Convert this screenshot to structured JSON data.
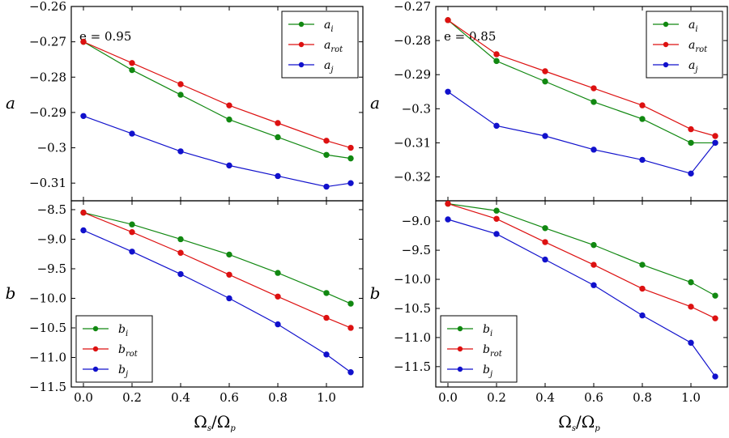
{
  "figure": {
    "xlabel": "Ω",
    "xlabel_sub1": "s",
    "xlabel_slash": "/Ω",
    "xlabel_sub2": "p"
  },
  "chart_data": [
    {
      "type": "line",
      "id": "left-top",
      "annotation": "e = 0.95",
      "ylabel": "a",
      "x": [
        0.0,
        0.2,
        0.4,
        0.6,
        0.8,
        1.0,
        1.1
      ],
      "xlim": [
        -0.05,
        1.15
      ],
      "ylim": [
        -0.315,
        -0.26
      ],
      "yticks": [
        -0.31,
        -0.3,
        -0.29,
        -0.28,
        -0.27,
        -0.26
      ],
      "ytick_labels": [
        "−0.31",
        "−0.3",
        "−0.29",
        "−0.28",
        "−0.27",
        "−0.26"
      ],
      "legend_position": "top-right",
      "series": [
        {
          "name": "a",
          "sub": "i",
          "color": "#118811",
          "values": [
            -0.27,
            -0.278,
            -0.285,
            -0.292,
            -0.297,
            -0.302,
            -0.303
          ]
        },
        {
          "name": "a",
          "sub": "rot",
          "color": "#dd1111",
          "values": [
            -0.27,
            -0.276,
            -0.282,
            -0.288,
            -0.293,
            -0.298,
            -0.3
          ]
        },
        {
          "name": "a",
          "sub": "j",
          "color": "#1111cc",
          "values": [
            -0.291,
            -0.296,
            -0.301,
            -0.305,
            -0.308,
            -0.311,
            -0.31
          ]
        }
      ]
    },
    {
      "type": "line",
      "id": "left-bottom",
      "ylabel": "b",
      "x": [
        0.0,
        0.2,
        0.4,
        0.6,
        0.8,
        1.0,
        1.1
      ],
      "xlim": [
        -0.05,
        1.15
      ],
      "ylim": [
        -11.5,
        -8.35
      ],
      "yticks": [
        -11.5,
        -11.0,
        -10.5,
        -10.0,
        -9.5,
        -9.0,
        -8.5
      ],
      "ytick_labels": [
        "−11.5",
        "−11.0",
        "−10.5",
        "−10.0",
        "−9.5",
        "−9.0",
        "−8.5"
      ],
      "xticks": [
        0.0,
        0.2,
        0.4,
        0.6,
        0.8,
        1.0
      ],
      "xtick_labels": [
        "0.0",
        "0.2",
        "0.4",
        "0.6",
        "0.8",
        "1.0"
      ],
      "legend_position": "bottom-left",
      "series": [
        {
          "name": "b",
          "sub": "i",
          "color": "#118811",
          "values": [
            -8.55,
            -8.75,
            -9.0,
            -9.26,
            -9.57,
            -9.91,
            -10.09
          ]
        },
        {
          "name": "b",
          "sub": "rot",
          "color": "#dd1111",
          "values": [
            -8.55,
            -8.88,
            -9.23,
            -9.6,
            -9.97,
            -10.33,
            -10.5
          ]
        },
        {
          "name": "b",
          "sub": "j",
          "color": "#1111cc",
          "values": [
            -8.85,
            -9.21,
            -9.59,
            -10.0,
            -10.44,
            -10.95,
            -11.25
          ]
        }
      ]
    },
    {
      "type": "line",
      "id": "right-top",
      "annotation": "e = 0.85",
      "ylabel": "a",
      "x": [
        0.0,
        0.2,
        0.4,
        0.6,
        0.8,
        1.0,
        1.1
      ],
      "xlim": [
        -0.05,
        1.15
      ],
      "ylim": [
        -0.327,
        -0.27
      ],
      "yticks": [
        -0.32,
        -0.31,
        -0.3,
        -0.29,
        -0.28,
        -0.27
      ],
      "ytick_labels": [
        "−0.32",
        "−0.31",
        "−0.3",
        "−0.29",
        "−0.28",
        "−0.27"
      ],
      "legend_position": "top-right",
      "series": [
        {
          "name": "a",
          "sub": "i",
          "color": "#118811",
          "values": [
            -0.274,
            -0.286,
            -0.292,
            -0.298,
            -0.303,
            -0.31,
            -0.31
          ]
        },
        {
          "name": "a",
          "sub": "rot",
          "color": "#dd1111",
          "values": [
            -0.274,
            -0.284,
            -0.289,
            -0.294,
            -0.299,
            -0.306,
            -0.308
          ]
        },
        {
          "name": "a",
          "sub": "j",
          "color": "#1111cc",
          "values": [
            -0.295,
            -0.305,
            -0.308,
            -0.312,
            -0.315,
            -0.319,
            -0.31
          ]
        }
      ]
    },
    {
      "type": "line",
      "id": "right-bottom",
      "ylabel": "b",
      "x": [
        0.0,
        0.2,
        0.4,
        0.6,
        0.8,
        1.0,
        1.1
      ],
      "xlim": [
        -0.05,
        1.15
      ],
      "ylim": [
        -11.85,
        -8.65
      ],
      "yticks": [
        -11.5,
        -11.0,
        -10.5,
        -10.0,
        -9.5,
        -9.0
      ],
      "ytick_labels": [
        "−11.5",
        "−11.0",
        "−10.5",
        "−10.0",
        "−9.5",
        "−9.0"
      ],
      "xticks": [
        0.0,
        0.2,
        0.4,
        0.6,
        0.8,
        1.0
      ],
      "xtick_labels": [
        "0.0",
        "0.2",
        "0.4",
        "0.6",
        "0.8",
        "1.0"
      ],
      "legend_position": "bottom-left",
      "series": [
        {
          "name": "b",
          "sub": "i",
          "color": "#118811",
          "values": [
            -8.7,
            -8.82,
            -9.12,
            -9.41,
            -9.75,
            -10.05,
            -10.28
          ]
        },
        {
          "name": "b",
          "sub": "rot",
          "color": "#dd1111",
          "values": [
            -8.7,
            -8.96,
            -9.36,
            -9.75,
            -10.16,
            -10.47,
            -10.67
          ]
        },
        {
          "name": "b",
          "sub": "j",
          "color": "#1111cc",
          "values": [
            -8.97,
            -9.22,
            -9.66,
            -10.1,
            -10.62,
            -11.09,
            -11.67
          ]
        }
      ]
    }
  ]
}
